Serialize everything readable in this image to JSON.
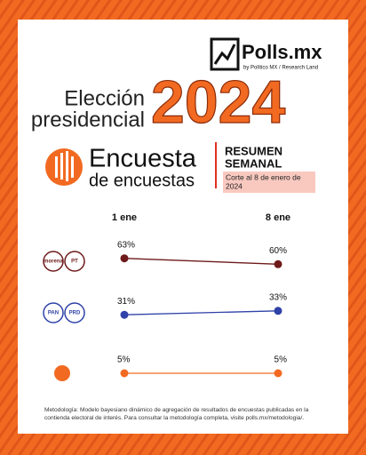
{
  "header": {
    "brand": "Polls.mx",
    "byline": "by Político MX / Research Land"
  },
  "title": {
    "line1": "Elección",
    "line2": "presidencial",
    "year": "2024"
  },
  "product": {
    "name1": "Encuesta",
    "name2": "de encuestas",
    "label1": "RESUMEN",
    "label2": "SEMANAL",
    "cut1": "Corte al 8 de enero de",
    "cut2": "2024"
  },
  "chart_data": {
    "type": "slope",
    "categories": [
      "1 ene",
      "8 ene"
    ],
    "series": [
      {
        "color": "#6e1a1a",
        "values": [
          63,
          60
        ],
        "value_labels": [
          "63%",
          "60%"
        ],
        "logos": [
          "morena",
          "PT"
        ]
      },
      {
        "color": "#2f42a8",
        "values": [
          31,
          33
        ],
        "value_labels": [
          "31%",
          "33%"
        ],
        "logos": [
          "PAN",
          "PRD"
        ]
      },
      {
        "color": "#f26a21",
        "values": [
          5,
          5
        ],
        "value_labels": [
          "5%",
          "5%"
        ],
        "logos": []
      }
    ]
  },
  "footer": {
    "line1": "Metodología: Modelo bayesiano dinámico de agregación de resultados de encuestas publicadas en la",
    "line2": "contienda electoral de interés. Para consultar la metodología completa, visite polls.mx/metodologia/."
  }
}
